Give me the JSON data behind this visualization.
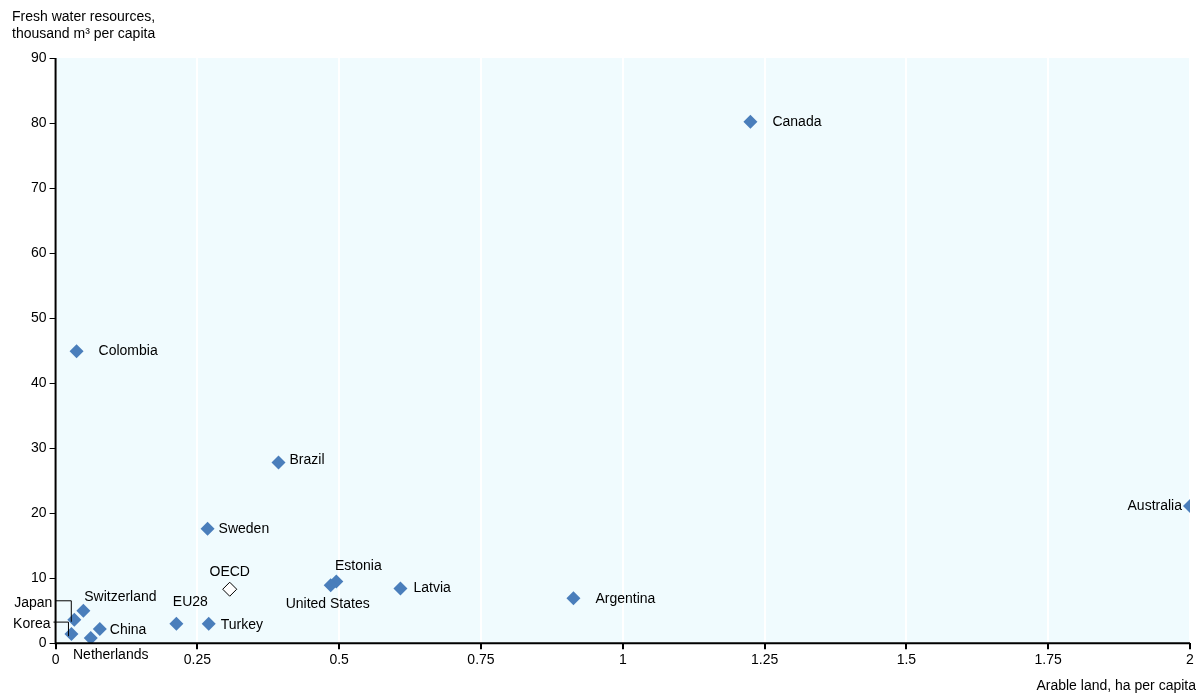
{
  "chart_data": {
    "type": "scatter",
    "xlabel": "Arable land, ha  per capita",
    "ylabel": "Fresh water resources,\nthousand m³ per capita",
    "xlim": [
      0,
      2
    ],
    "xticks": [
      0,
      0.25,
      0.5,
      0.75,
      1,
      1.25,
      1.5,
      1.75,
      2
    ],
    "ylim": [
      0,
      90
    ],
    "yticks": [
      0,
      10,
      20,
      30,
      40,
      50,
      60,
      70,
      80,
      90
    ],
    "grid": "x",
    "marker": "diamond",
    "series": [
      {
        "color": "#4a7ebb",
        "x": [
          1.225,
          0.037,
          0.393,
          0.268,
          2.0,
          0.495,
          0.485,
          0.608,
          0.913,
          0.213,
          0.27,
          0.049,
          0.033,
          0.028,
          0.078,
          0.062
        ],
        "values": [
          80.2,
          44.9,
          27.8,
          17.6,
          21.1,
          9.5,
          8.9,
          8.4,
          6.9,
          3.0,
          3.0,
          5.0,
          3.6,
          1.4,
          2.2,
          0.8
        ]
      },
      {
        "color": "#000000",
        "x": [
          0.307
        ],
        "values": [
          8.3
        ]
      }
    ],
    "annotations": [
      {
        "text": "Canada",
        "x": 1.225,
        "y": 80.2
      },
      {
        "text": "Colombia",
        "x": 0.037,
        "y": 44.9
      },
      {
        "text": "Brazil",
        "x": 0.393,
        "y": 27.8
      },
      {
        "text": "Sweden",
        "x": 0.268,
        "y": 17.6
      },
      {
        "text": "Australia",
        "x": 2.0,
        "y": 21.1
      },
      {
        "text": "Estonia",
        "x": 0.495,
        "y": 9.5
      },
      {
        "text": "United States",
        "x": 0.485,
        "y": 8.9
      },
      {
        "text": "Latvia",
        "x": 0.608,
        "y": 8.4
      },
      {
        "text": "Argentina",
        "x": 0.913,
        "y": 6.9
      },
      {
        "text": "EU28",
        "x": 0.213,
        "y": 3.0
      },
      {
        "text": "Turkey",
        "x": 0.27,
        "y": 3.0
      },
      {
        "text": "Switzerland",
        "x": 0.049,
        "y": 5.0
      },
      {
        "text": "Japan",
        "x": 0.033,
        "y": 3.6
      },
      {
        "text": "Korea",
        "x": 0.028,
        "y": 1.4
      },
      {
        "text": "China",
        "x": 0.078,
        "y": 2.2
      },
      {
        "text": "Netherlands",
        "x": 0.062,
        "y": 0.8
      },
      {
        "text": "OECD",
        "x": 0.307,
        "y": 8.3
      }
    ]
  }
}
